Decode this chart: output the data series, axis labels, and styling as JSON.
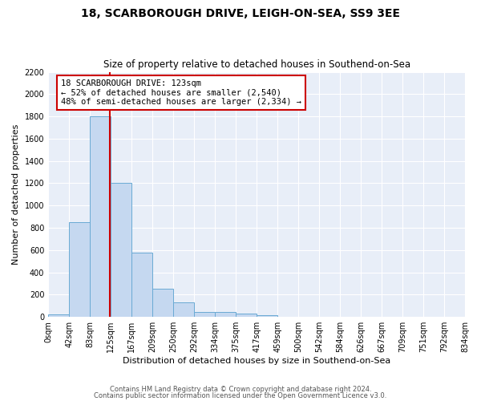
{
  "title1": "18, SCARBOROUGH DRIVE, LEIGH-ON-SEA, SS9 3EE",
  "title2": "Size of property relative to detached houses in Southend-on-Sea",
  "xlabel": "Distribution of detached houses by size in Southend-on-Sea",
  "ylabel": "Number of detached properties",
  "bin_labels": [
    "0sqm",
    "42sqm",
    "83sqm",
    "125sqm",
    "167sqm",
    "209sqm",
    "250sqm",
    "292sqm",
    "334sqm",
    "375sqm",
    "417sqm",
    "459sqm",
    "500sqm",
    "542sqm",
    "584sqm",
    "626sqm",
    "667sqm",
    "709sqm",
    "751sqm",
    "792sqm",
    "834sqm"
  ],
  "bin_edges": [
    0,
    42,
    83,
    125,
    167,
    209,
    250,
    292,
    334,
    375,
    417,
    459,
    500,
    542,
    584,
    626,
    667,
    709,
    751,
    792,
    834
  ],
  "bar_values": [
    25,
    850,
    1800,
    1200,
    580,
    255,
    130,
    42,
    42,
    30,
    18,
    0,
    0,
    0,
    0,
    0,
    0,
    0,
    0,
    0
  ],
  "bar_color": "#c5d8f0",
  "bar_edge_color": "#6aaad4",
  "property_line_x": 123,
  "annotation_line1": "18 SCARBOROUGH DRIVE: 123sqm",
  "annotation_line2": "← 52% of detached houses are smaller (2,540)",
  "annotation_line3": "48% of semi-detached houses are larger (2,334) →",
  "annotation_box_color": "white",
  "annotation_box_edge_color": "#cc0000",
  "vline_color": "#cc0000",
  "ylim": [
    0,
    2200
  ],
  "yticks": [
    0,
    200,
    400,
    600,
    800,
    1000,
    1200,
    1400,
    1600,
    1800,
    2000,
    2200
  ],
  "footer1": "Contains HM Land Registry data © Crown copyright and database right 2024.",
  "footer2": "Contains public sector information licensed under the Open Government Licence v3.0.",
  "bg_color": "#ffffff",
  "plot_bg_color": "#e8eef8",
  "grid_color": "#ffffff",
  "tick_fontsize": 7,
  "ylabel_fontsize": 8,
  "xlabel_fontsize": 8
}
